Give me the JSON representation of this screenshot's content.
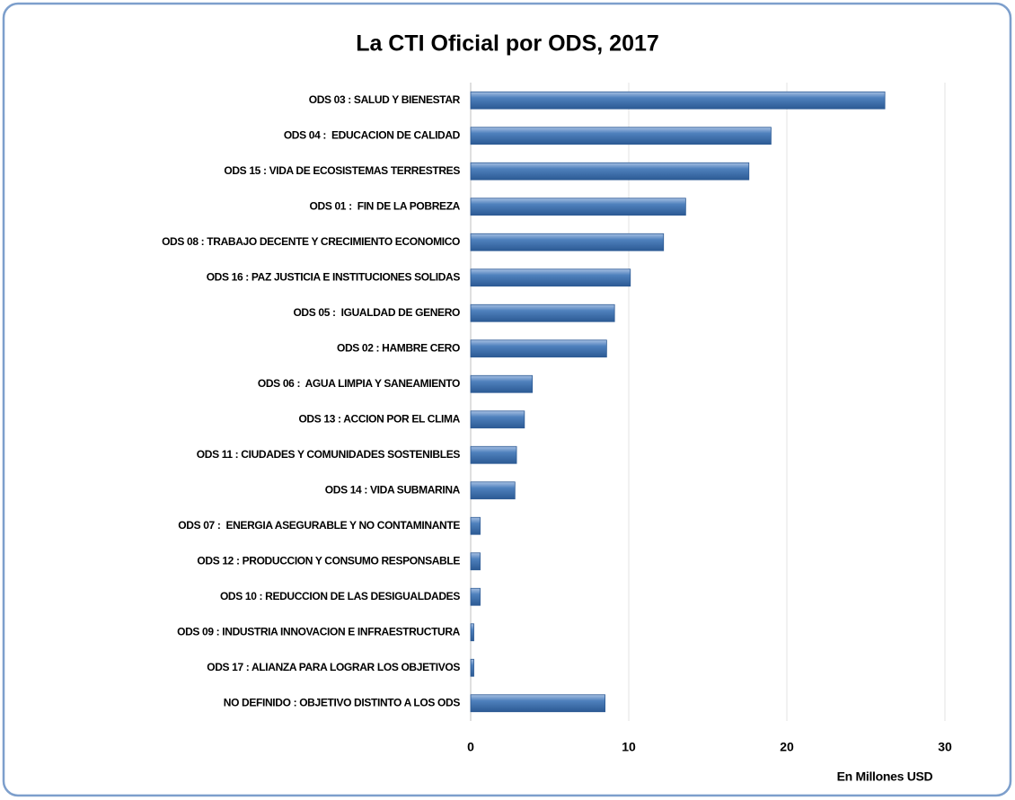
{
  "chart_data": {
    "type": "bar",
    "orientation": "horizontal",
    "title": "La CTI Oficial por ODS, 2017",
    "xlabel": "En Millones USD",
    "categories": [
      "ODS 03 : SALUD Y BIENESTAR",
      "ODS 04 :  EDUCACION DE CALIDAD",
      "ODS 15 : VIDA DE ECOSISTEMAS TERRESTRES",
      "ODS 01 :  FIN DE LA POBREZA",
      "ODS 08 : TRABAJO DECENTE Y CRECIMIENTO ECONOMICO",
      "ODS 16 : PAZ JUSTICIA E INSTITUCIONES SOLIDAS",
      "ODS 05 :  IGUALDAD DE GENERO",
      "ODS 02 : HAMBRE CERO",
      "ODS 06 :  AGUA LIMPIA Y SANEAMIENTO",
      "ODS 13 : ACCION POR EL CLIMA",
      "ODS 11 : CIUDADES Y COMUNIDADES SOSTENIBLES",
      "ODS 14 : VIDA SUBMARINA",
      "ODS 07 :  ENERGIA ASEGURABLE Y NO CONTAMINANTE",
      "ODS 12 : PRODUCCION Y CONSUMO RESPONSABLE",
      "ODS 10 : REDUCCION DE LAS DESIGUALDADES",
      "ODS 09 : INDUSTRIA INNOVACION E INFRAESTRUCTURA",
      "ODS 17 : ALIANZA PARA LOGRAR LOS OBJETIVOS",
      "NO DEFINIDO : OBJETIVO DISTINTO A LOS ODS"
    ],
    "values": [
      26.2,
      19.0,
      17.6,
      13.6,
      12.2,
      10.1,
      9.1,
      8.6,
      3.9,
      3.4,
      2.9,
      2.8,
      0.6,
      0.6,
      0.6,
      0.2,
      0.2,
      8.5
    ],
    "color": "#4f81bd",
    "xlim": [
      0,
      30
    ],
    "xticks": [
      0,
      10,
      20,
      30
    ],
    "grid": true
  }
}
